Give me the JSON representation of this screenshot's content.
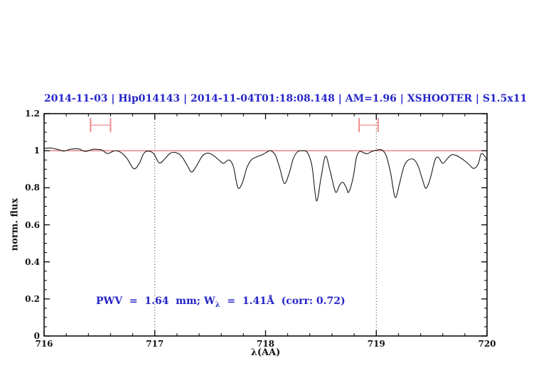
{
  "title": "2014-11-03 | Hip014143 | 2014-11-04T01:18:08.148 | AM=1.96 | XSHOOTER | S1.5x11",
  "annotation": {
    "prefix": "PWV  =  1.64  mm; W",
    "subscript": "λ",
    "suffix": "  =  1.41Å  (corr: 0.72)"
  },
  "colors": {
    "accent_blue": "#2525c8",
    "reference_red": "#dd4a4a",
    "marker_red": "#ef8b8b",
    "spectrum_black": "#1a1a1a",
    "dotted_line_gray": "#3a3a3a",
    "axis_black": "#000000"
  },
  "chart_data": {
    "type": "line",
    "title": "2014-11-03 | Hip014143 | 2014-11-04T01:18:08.148 | AM=1.96 | XSHOOTER | S1.5x11",
    "xlabel": "λ(AA)",
    "ylabel": "norm. flux",
    "xlim": [
      716,
      720
    ],
    "ylim": [
      0,
      1.2
    ],
    "x_major_ticks": [
      716,
      717,
      718,
      719,
      720
    ],
    "x_tick_labels": [
      "716",
      "717",
      "718",
      "719",
      "720"
    ],
    "x_minor_step": 0.2,
    "y_major_ticks": [
      0,
      0.2,
      0.4,
      0.6,
      0.8,
      1,
      1.2
    ],
    "y_tick_labels": [
      "0",
      "0.2",
      "0.4",
      "0.6",
      "0.8",
      "1",
      "1.2"
    ],
    "y_minor_step": 0.05,
    "grid": "off",
    "legend": "none",
    "reference_line_y": 1.0,
    "vertical_dotted_lines_x": [
      717,
      719
    ],
    "interval_markers": [
      {
        "x1": 716.42,
        "x2": 716.6,
        "y": 1.138,
        "cap_half_height": 0.038
      },
      {
        "x1": 718.845,
        "x2": 719.016,
        "y": 1.138,
        "cap_half_height": 0.038
      }
    ],
    "series": [
      {
        "name": "normalized-spectrum",
        "points": [
          [
            716.0,
            1.013
          ],
          [
            716.06,
            1.015
          ],
          [
            716.1,
            1.01
          ],
          [
            716.14,
            1.004
          ],
          [
            716.18,
            0.998
          ],
          [
            716.24,
            1.008
          ],
          [
            716.31,
            1.01
          ],
          [
            716.35,
            1.0
          ],
          [
            716.38,
            0.996
          ],
          [
            716.43,
            1.006
          ],
          [
            716.46,
            1.008
          ],
          [
            716.52,
            1.004
          ],
          [
            716.57,
            0.985
          ],
          [
            716.62,
            0.996
          ],
          [
            716.65,
            1.0
          ],
          [
            716.7,
            0.988
          ],
          [
            716.75,
            0.957
          ],
          [
            716.81,
            0.903
          ],
          [
            716.86,
            0.932
          ],
          [
            716.9,
            0.985
          ],
          [
            716.94,
            0.998
          ],
          [
            716.99,
            0.984
          ],
          [
            717.04,
            0.934
          ],
          [
            717.09,
            0.956
          ],
          [
            717.14,
            0.987
          ],
          [
            717.19,
            0.99
          ],
          [
            717.24,
            0.971
          ],
          [
            717.29,
            0.924
          ],
          [
            717.33,
            0.885
          ],
          [
            717.37,
            0.912
          ],
          [
            717.43,
            0.972
          ],
          [
            717.48,
            0.987
          ],
          [
            717.53,
            0.974
          ],
          [
            717.58,
            0.949
          ],
          [
            717.62,
            0.932
          ],
          [
            717.67,
            0.95
          ],
          [
            717.71,
            0.914
          ],
          [
            717.75,
            0.801
          ],
          [
            717.79,
            0.826
          ],
          [
            717.83,
            0.906
          ],
          [
            717.87,
            0.95
          ],
          [
            717.92,
            0.967
          ],
          [
            717.97,
            0.978
          ],
          [
            718.02,
            0.995
          ],
          [
            718.05,
            1.0
          ],
          [
            718.09,
            0.974
          ],
          [
            718.13,
            0.903
          ],
          [
            718.17,
            0.823
          ],
          [
            718.21,
            0.872
          ],
          [
            718.25,
            0.956
          ],
          [
            718.29,
            0.995
          ],
          [
            718.34,
            1.0
          ],
          [
            718.38,
            0.988
          ],
          [
            718.42,
            0.915
          ],
          [
            718.46,
            0.73
          ],
          [
            718.5,
            0.852
          ],
          [
            718.54,
            0.97
          ],
          [
            718.58,
            0.898
          ],
          [
            718.62,
            0.798
          ],
          [
            718.64,
            0.776
          ],
          [
            718.67,
            0.816
          ],
          [
            718.7,
            0.829
          ],
          [
            718.73,
            0.799
          ],
          [
            718.75,
            0.776
          ],
          [
            718.79,
            0.852
          ],
          [
            718.82,
            0.962
          ],
          [
            718.85,
            0.996
          ],
          [
            718.89,
            0.988
          ],
          [
            718.92,
            0.984
          ],
          [
            718.96,
            0.996
          ],
          [
            719.0,
            1.003
          ],
          [
            719.05,
            1.004
          ],
          [
            719.09,
            0.972
          ],
          [
            719.13,
            0.878
          ],
          [
            719.17,
            0.748
          ],
          [
            719.21,
            0.824
          ],
          [
            719.25,
            0.916
          ],
          [
            719.29,
            0.95
          ],
          [
            719.34,
            0.952
          ],
          [
            719.38,
            0.914
          ],
          [
            719.42,
            0.838
          ],
          [
            719.45,
            0.797
          ],
          [
            719.49,
            0.856
          ],
          [
            719.53,
            0.95
          ],
          [
            719.56,
            0.964
          ],
          [
            719.6,
            0.932
          ],
          [
            719.64,
            0.956
          ],
          [
            719.68,
            0.978
          ],
          [
            719.72,
            0.975
          ],
          [
            719.76,
            0.962
          ],
          [
            719.8,
            0.945
          ],
          [
            719.84,
            0.924
          ],
          [
            719.88,
            0.904
          ],
          [
            719.92,
            0.928
          ],
          [
            719.95,
            0.985
          ],
          [
            720.0,
            0.953
          ]
        ]
      }
    ]
  }
}
